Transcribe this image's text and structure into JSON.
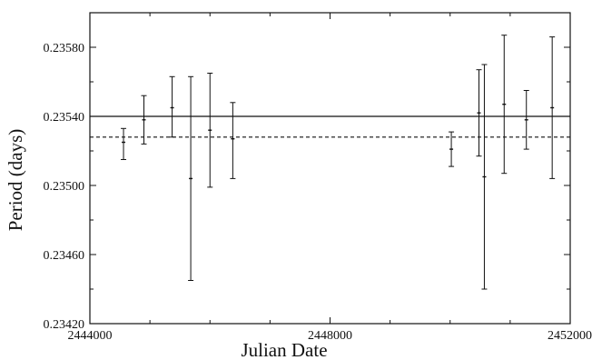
{
  "chart_data": {
    "type": "scatter",
    "xlabel": "Julian Date",
    "ylabel": "Period (days)",
    "xlim": [
      2444000,
      2452000
    ],
    "ylim": [
      0.2342,
      0.236
    ],
    "x_ticks": [
      2444000,
      2448000,
      2452000
    ],
    "x_tick_labels": [
      "2444000",
      "2448000",
      "2452000"
    ],
    "y_ticks": [
      0.2342,
      0.2346,
      0.235,
      0.2354,
      0.2358
    ],
    "y_tick_labels": [
      "0.23420",
      "0.23460",
      "0.23500",
      "0.23540",
      "0.23580"
    ],
    "grid": false,
    "ticks_on_all_sides": true,
    "reference_lines": [
      {
        "style": "solid",
        "y": 0.2354
      },
      {
        "style": "dashed",
        "y": 0.23528
      }
    ],
    "series": [
      {
        "points": [
          {
            "x": 2444560,
            "y": 0.23525,
            "err_low": 0.23515,
            "err_high": 0.23533
          },
          {
            "x": 2444900,
            "y": 0.23538,
            "err_low": 0.23524,
            "err_high": 0.23552
          },
          {
            "x": 2445370,
            "y": 0.23545,
            "err_low": 0.23528,
            "err_high": 0.23563
          },
          {
            "x": 2445680,
            "y": 0.23504,
            "err_low": 0.23445,
            "err_high": 0.23563
          },
          {
            "x": 2446000,
            "y": 0.23532,
            "err_low": 0.23499,
            "err_high": 0.23565
          },
          {
            "x": 2446380,
            "y": 0.23527,
            "err_low": 0.23504,
            "err_high": 0.23548
          },
          {
            "x": 2450020,
            "y": 0.23521,
            "err_low": 0.23511,
            "err_high": 0.23531
          },
          {
            "x": 2450480,
            "y": 0.23542,
            "err_low": 0.23517,
            "err_high": 0.23567
          },
          {
            "x": 2450570,
            "y": 0.23505,
            "err_low": 0.2344,
            "err_high": 0.2357
          },
          {
            "x": 2450900,
            "y": 0.23547,
            "err_low": 0.23507,
            "err_high": 0.23587
          },
          {
            "x": 2451270,
            "y": 0.23538,
            "err_low": 0.23521,
            "err_high": 0.23555
          },
          {
            "x": 2451700,
            "y": 0.23545,
            "err_low": 0.23504,
            "err_high": 0.23586
          }
        ]
      }
    ]
  }
}
